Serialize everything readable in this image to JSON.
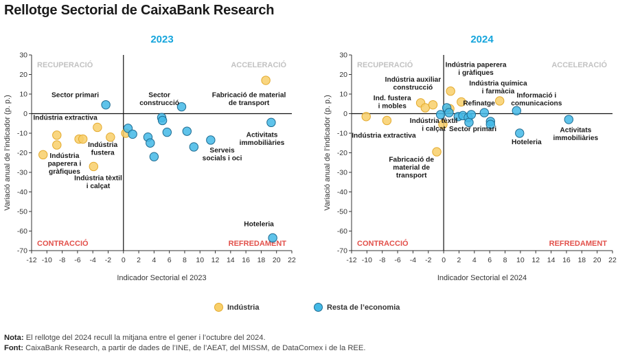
{
  "title": "Rellotge Sectorial de CaixaBank Research",
  "legend": {
    "industria": "Indústria",
    "resta": "Resta de l’economia"
  },
  "colors": {
    "industria_fill": "#f8cf6a",
    "industria_stroke": "#e3a92c",
    "resta_fill": "#43b9e6",
    "resta_stroke": "#1d6a90",
    "quadrant_grey": "#c2c2c2",
    "quadrant_red": "#e2504a",
    "panel_title": "#16a5dc"
  },
  "notes": {
    "nota_label": "Nota:",
    "nota_text": "El rellotge del 2024 recull la mitjana entre el gener i l’octubre del 2024.",
    "font_label": "Font:",
    "font_text": "CaixaBank Research, a partir de dades de l’INE, de l’AEAT, del MISSM, de DataComex i de la REE."
  },
  "chart_data": [
    {
      "type": "scatter",
      "title": "2023",
      "xlabel": "Indicador Sectorial el 2023",
      "ylabel": "Variació anual de l’indicador (p. p.)",
      "xlim": [
        -12,
        22
      ],
      "ylim": [
        -70,
        30
      ],
      "xticks": [
        -12,
        -10,
        -8,
        -6,
        -4,
        -2,
        0,
        2,
        4,
        6,
        8,
        10,
        12,
        14,
        16,
        18,
        20,
        22
      ],
      "yticks": [
        30,
        20,
        10,
        0,
        -10,
        -20,
        -30,
        -40,
        -50,
        -60,
        -70
      ],
      "quadrants": {
        "top_left": "RECUPERACIÓ",
        "top_right": "ACCELERACIÓ",
        "bottom_left": "CONTRACCIÓ",
        "bottom_right": "REFREDAMENT"
      },
      "series": [
        {
          "name": "Indústria",
          "points": [
            {
              "x": -10.5,
              "y": -21
            },
            {
              "x": -8.7,
              "y": -11
            },
            {
              "x": -8.7,
              "y": -16
            },
            {
              "x": -5.8,
              "y": -13
            },
            {
              "x": -5.3,
              "y": -13
            },
            {
              "x": -3.9,
              "y": -27
            },
            {
              "x": -3.4,
              "y": -7
            },
            {
              "x": -1.7,
              "y": -12
            },
            {
              "x": 0.3,
              "y": -10
            },
            {
              "x": 18.6,
              "y": 17
            }
          ]
        },
        {
          "name": "Resta de l’economia",
          "points": [
            {
              "x": -2.3,
              "y": 4.5
            },
            {
              "x": 0.6,
              "y": -7.5
            },
            {
              "x": 1.2,
              "y": -10.5
            },
            {
              "x": 3.2,
              "y": -12
            },
            {
              "x": 3.5,
              "y": -15
            },
            {
              "x": 4.0,
              "y": -22
            },
            {
              "x": 5.0,
              "y": -2
            },
            {
              "x": 5.1,
              "y": -3.5
            },
            {
              "x": 5.7,
              "y": -9.5
            },
            {
              "x": 7.6,
              "y": 3.5
            },
            {
              "x": 8.3,
              "y": -9
            },
            {
              "x": 9.2,
              "y": -17
            },
            {
              "x": 11.4,
              "y": -13.5
            },
            {
              "x": 19.3,
              "y": -4.5
            },
            {
              "x": 19.5,
              "y": -63.5
            }
          ]
        }
      ],
      "annotations": [
        {
          "lines": [
            "Sector primari"
          ],
          "x": -6.3,
          "y": 8.5
        },
        {
          "lines": [
            "Indústria extractiva"
          ],
          "x": -7.6,
          "y": -3.2
        },
        {
          "lines": [
            "Indústria",
            "fustera"
          ],
          "x": -2.7,
          "y": -17
        },
        {
          "lines": [
            "Indústria",
            "paperera i",
            "gràfiques"
          ],
          "x": -7.7,
          "y": -22.7
        },
        {
          "lines": [
            "Indústria tèxtil",
            "i calçat"
          ],
          "x": -3.3,
          "y": -34
        },
        {
          "lines": [
            "Sector",
            "construcció"
          ],
          "x": 4.7,
          "y": 8.5
        },
        {
          "lines": [
            "Fabricació de material",
            "de transport"
          ],
          "x": 16.4,
          "y": 8.5
        },
        {
          "lines": [
            "Activitats",
            "immobiliàries"
          ],
          "x": 18.1,
          "y": -12
        },
        {
          "lines": [
            "Serveis",
            "socials i oci"
          ],
          "x": 12.9,
          "y": -19.8
        },
        {
          "lines": [
            "Hoteleria"
          ],
          "x": 17.7,
          "y": -57.5
        }
      ]
    },
    {
      "type": "scatter",
      "title": "2024",
      "xlabel": "Indicador Sectorial el 2024",
      "ylabel": "Variació anual de l’indicador (p. p.)",
      "xlim": [
        -12,
        22
      ],
      "ylim": [
        -70,
        30
      ],
      "xticks": [
        -12,
        -10,
        -8,
        -6,
        -4,
        -2,
        0,
        2,
        4,
        6,
        8,
        10,
        12,
        14,
        16,
        18,
        20,
        22
      ],
      "yticks": [
        30,
        20,
        10,
        0,
        -10,
        -20,
        -30,
        -40,
        -50,
        -60,
        -70
      ],
      "quadrants": {
        "top_left": "RECUPERACIÓ",
        "top_right": "ACCELERACIÓ",
        "bottom_left": "CONTRACCIÓ",
        "bottom_right": "REFREDAMENT"
      },
      "series": [
        {
          "name": "Indústria",
          "points": [
            {
              "x": -10.1,
              "y": -1.5
            },
            {
              "x": -7.4,
              "y": -3.5
            },
            {
              "x": -3.0,
              "y": 5.5
            },
            {
              "x": -2.4,
              "y": 3.0
            },
            {
              "x": -1.4,
              "y": 4.5
            },
            {
              "x": -0.9,
              "y": -19.5
            },
            {
              "x": -0.1,
              "y": -5.5
            },
            {
              "x": 0.8,
              "y": 2.5
            },
            {
              "x": 0.9,
              "y": 11.5
            },
            {
              "x": 2.3,
              "y": 6.0
            },
            {
              "x": 7.3,
              "y": 6.5
            }
          ]
        },
        {
          "name": "Resta de l’economia",
          "points": [
            {
              "x": -0.4,
              "y": -0.5
            },
            {
              "x": 0.4,
              "y": 3.0
            },
            {
              "x": 0.7,
              "y": 0.5
            },
            {
              "x": 1.9,
              "y": -1.5
            },
            {
              "x": 2.5,
              "y": -1.0
            },
            {
              "x": 3.2,
              "y": -2.0
            },
            {
              "x": 3.3,
              "y": -4.5
            },
            {
              "x": 3.6,
              "y": -0.5
            },
            {
              "x": 5.3,
              "y": 0.5
            },
            {
              "x": 6.1,
              "y": -4.0
            },
            {
              "x": 6.1,
              "y": -5.5
            },
            {
              "x": 9.5,
              "y": 1.5
            },
            {
              "x": 9.9,
              "y": -10.0
            },
            {
              "x": 16.3,
              "y": -3.0
            }
          ]
        }
      ],
      "annotations": [
        {
          "lines": [
            "Indústria paperera",
            "i gràfiques"
          ],
          "x": 4.2,
          "y": 23.8
        },
        {
          "lines": [
            "Indústria auxiliar",
            "construcció"
          ],
          "x": -4.0,
          "y": 16.3
        },
        {
          "lines": [
            "Ind. fustera",
            "i mobles"
          ],
          "x": -6.7,
          "y": 6.8
        },
        {
          "lines": [
            "Indústria química",
            "i farmàcia"
          ],
          "x": 7.1,
          "y": 14.3
        },
        {
          "lines": [
            "Refinatge"
          ],
          "x": 4.6,
          "y": 4.2
        },
        {
          "lines": [
            "Informació i",
            "comunicacions"
          ],
          "x": 12.1,
          "y": 8.3
        },
        {
          "lines": [
            "Indústria tèxtil",
            "i calçat"
          ],
          "x": -1.3,
          "y": -4.7
        },
        {
          "lines": [
            "Sector primari"
          ],
          "x": 3.8,
          "y": -9.0
        },
        {
          "lines": [
            "Indústria extractiva"
          ],
          "x": -7.8,
          "y": -12.3
        },
        {
          "lines": [
            "Fabricació de",
            "material de",
            "transport"
          ],
          "x": -4.2,
          "y": -24.5
        },
        {
          "lines": [
            "Hoteleria"
          ],
          "x": 10.8,
          "y": -15.7
        },
        {
          "lines": [
            "Activitats",
            "immobiliàries"
          ],
          "x": 17.2,
          "y": -9.5
        }
      ]
    }
  ]
}
